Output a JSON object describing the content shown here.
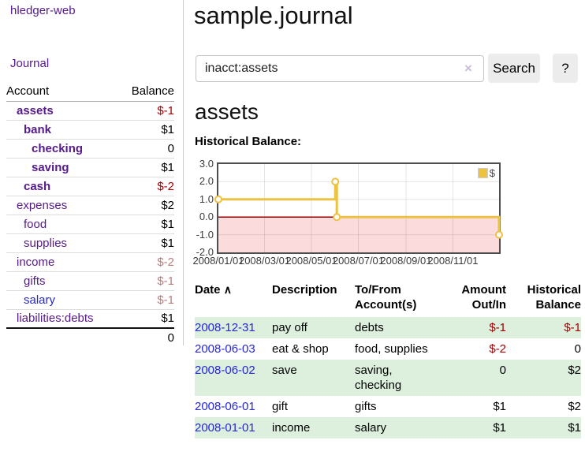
{
  "app": {
    "brand": "hledger-web"
  },
  "sidebar": {
    "nav_journal": "Journal",
    "accounts": {
      "headers": {
        "account": "Account",
        "balance": "Balance"
      },
      "rows": [
        {
          "name": "assets",
          "balance": "$-1"
        },
        {
          "name": "bank",
          "balance": "$1"
        },
        {
          "name": "checking",
          "balance": "0"
        },
        {
          "name": "saving",
          "balance": "$1"
        },
        {
          "name": "cash",
          "balance": "$-2"
        },
        {
          "name": "expenses",
          "balance": "$2"
        },
        {
          "name": "food",
          "balance": "$1"
        },
        {
          "name": "supplies",
          "balance": "$1"
        },
        {
          "name": "income",
          "balance": "$-2"
        },
        {
          "name": "gifts",
          "balance": "$-1"
        },
        {
          "name": "salary",
          "balance": "$-1"
        },
        {
          "name": "liabilities:debts",
          "balance": "$1"
        }
      ],
      "total": "0"
    }
  },
  "main": {
    "title": "sample.journal",
    "search": {
      "value": "inacct:assets",
      "clear_icon": "×",
      "button": "Search",
      "help_button": "?"
    },
    "account_heading": "assets",
    "chart_heading": "Historical Balance:"
  },
  "chart_data": {
    "type": "line",
    "title": "Historical Balance",
    "legend_position": "top-right",
    "grid": true,
    "x_range": [
      "2008-01-01",
      "2008-12-31"
    ],
    "ylim": [
      -2,
      3
    ],
    "yticks": [
      {
        "v": 3,
        "label": "3.0"
      },
      {
        "v": 2,
        "label": "2.0"
      },
      {
        "v": 1,
        "label": "1.0"
      },
      {
        "v": 0,
        "label": "0.0"
      },
      {
        "v": -1,
        "label": "-1.0"
      },
      {
        "v": -2,
        "label": "-2.0"
      }
    ],
    "xticks": [
      {
        "date": "2008-01-01",
        "label": "2008/01/01"
      },
      {
        "date": "2008-03-01",
        "label": "2008/03/01"
      },
      {
        "date": "2008-05-01",
        "label": "2008/05/01"
      },
      {
        "date": "2008-07-01",
        "label": "2008/07/01"
      },
      {
        "date": "2008-09-01",
        "label": "2008/09/01"
      },
      {
        "date": "2008-11-01",
        "label": "2008/11/01"
      }
    ],
    "series": [
      {
        "name": "$",
        "color": "#edc240",
        "step": true,
        "points": [
          {
            "date": "2008-01-01",
            "y": 1
          },
          {
            "date": "2008-06-01",
            "y": 2
          },
          {
            "date": "2008-06-03",
            "y": 0
          },
          {
            "date": "2008-12-31",
            "y": -1
          }
        ]
      }
    ],
    "markings": {
      "below_zero_fill": "#fbdbdb",
      "zero_line_color": "#8b0000"
    }
  },
  "table": {
    "headers": {
      "date": "Date",
      "sort_icon": "∧",
      "description": "Description",
      "tofrom_1": "To/From",
      "tofrom_2": "Account(s)",
      "amount_1": "Amount",
      "amount_2": "Out/In",
      "balance_1": "Historical",
      "balance_2": "Balance"
    },
    "rows": [
      {
        "date": "2008-12-31",
        "description": "pay off",
        "accounts": "debts",
        "amount": "$-1",
        "balance": "$-1"
      },
      {
        "date": "2008-06-03",
        "description": "eat & shop",
        "accounts": "food, supplies",
        "amount": "$-2",
        "balance": "0"
      },
      {
        "date": "2008-06-02",
        "description": "save",
        "accounts": "saving, checking",
        "amount": "0",
        "balance": "$2"
      },
      {
        "date": "2008-06-01",
        "description": "gift",
        "accounts": "gifts",
        "amount": "$1",
        "balance": "$2"
      },
      {
        "date": "2008-01-01",
        "description": "income",
        "accounts": "salary",
        "amount": "$1",
        "balance": "$1"
      }
    ]
  }
}
